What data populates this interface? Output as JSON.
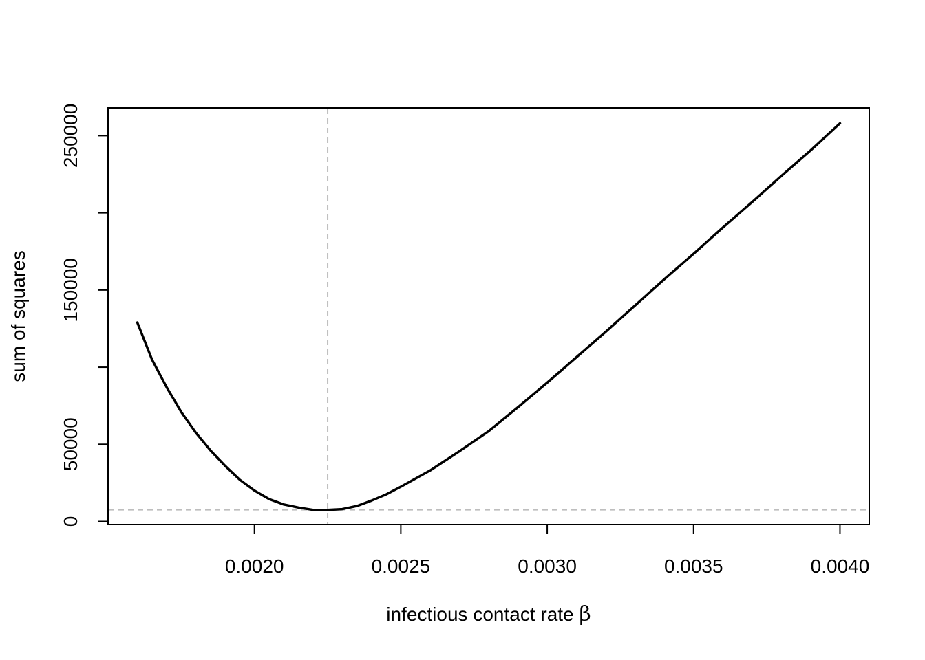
{
  "chart_data": {
    "type": "line",
    "xlabel": "infectious contact rate ",
    "xlabel_symbol": "β",
    "ylabel": "sum of squares",
    "xlim": [
      0.0015,
      0.0041
    ],
    "ylim": [
      -2000,
      268000
    ],
    "x_ticks": [
      0.002,
      0.0025,
      0.003,
      0.0035,
      0.004
    ],
    "x_tick_labels": [
      "0.0020",
      "0.0025",
      "0.0030",
      "0.0035",
      "0.0040"
    ],
    "y_ticks": [
      0,
      50000,
      100000,
      150000,
      200000,
      250000
    ],
    "y_tick_labels": [
      "0",
      "50000",
      "",
      "150000",
      "",
      "250000"
    ],
    "grid": false,
    "series": [
      {
        "color": "#000000",
        "x": [
          0.0016,
          0.00165,
          0.0017,
          0.00175,
          0.0018,
          0.00185,
          0.0019,
          0.00195,
          0.002,
          0.00205,
          0.0021,
          0.00215,
          0.0022,
          0.00225,
          0.0023,
          0.00235,
          0.0024,
          0.00245,
          0.0025,
          0.0026,
          0.0027,
          0.0028,
          0.0029,
          0.003,
          0.0031,
          0.0032,
          0.0033,
          0.0034,
          0.0035,
          0.0036,
          0.0037,
          0.0038,
          0.0039,
          0.004
        ],
        "values": [
          129000,
          105000,
          87000,
          71000,
          57500,
          46000,
          36000,
          27000,
          20000,
          14500,
          11000,
          9000,
          7500,
          7500,
          8000,
          10000,
          13500,
          17500,
          22500,
          33000,
          45500,
          58500,
          74000,
          90000,
          106500,
          123000,
          140000,
          157000,
          173500,
          190500,
          207000,
          224000,
          240500,
          258000
        ],
        "line_width": 3.5
      }
    ],
    "reference_lines": [
      {
        "orientation": "vertical",
        "value": 0.00225,
        "color": "#bebebe",
        "style": "dashed"
      },
      {
        "orientation": "horizontal",
        "value": 7500,
        "color": "#bebebe",
        "style": "dashed"
      }
    ]
  }
}
